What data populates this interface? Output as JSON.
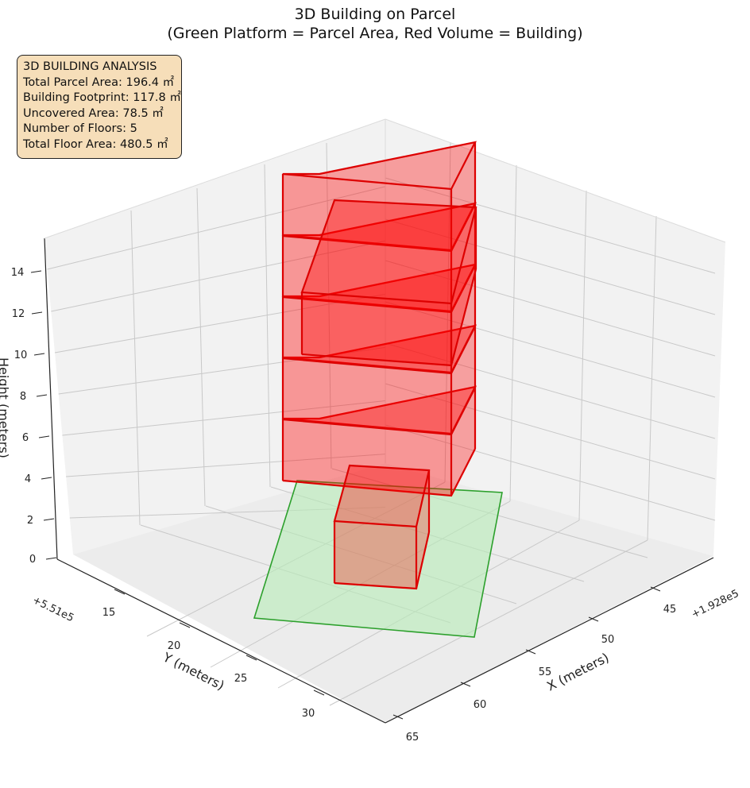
{
  "title_line1": "3D Building on Parcel",
  "title_line2": "(Green Platform = Parcel Area, Red Volume = Building)",
  "info": {
    "heading": "3D BUILDING ANALYSIS",
    "parcel_area": "Total Parcel Area: 196.4 ㎡",
    "footprint": "Building Footprint: 117.8 ㎡",
    "uncovered": "Uncovered Area: 78.5 ㎡",
    "floors": "Number of Floors: 5",
    "floor_area": "Total Floor Area: 480.5 ㎡"
  },
  "colors": {
    "building_face": "#ff0000",
    "building_edge": "#dd0000",
    "parcel_fill": "#b8ecb8",
    "parcel_edge": "#2ca02c",
    "pane": "#f2f2f2",
    "grid": "#c8c8c8"
  },
  "chart_data": {
    "type": "3d-bar",
    "xlabel": "X (meters)",
    "ylabel": "Y (meters)",
    "zlabel": "Height (meters)",
    "x_offset_label": "+1.928e5",
    "y_offset_label": "+5.51e5",
    "x_ticks": [
      "45",
      "50",
      "55",
      "60",
      "65"
    ],
    "y_ticks": [
      "15",
      "20",
      "25",
      "30"
    ],
    "z_ticks": [
      "0",
      "2",
      "4",
      "6",
      "8",
      "10",
      "12",
      "14"
    ],
    "parcel_area_m2": 196.4,
    "building_footprint_m2": 117.8,
    "uncovered_area_m2": 78.5,
    "floors": 5,
    "total_floor_area_m2": 480.5
  }
}
